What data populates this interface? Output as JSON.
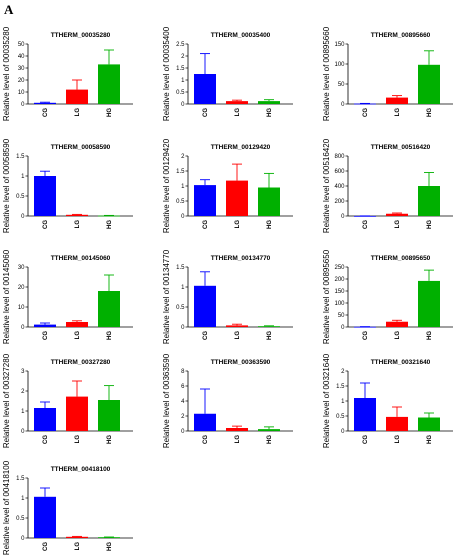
{
  "figure": {
    "panel_letter": "A"
  },
  "colors": {
    "CG": "#0000ff",
    "LG": "#ff0000",
    "HG": "#00b000"
  },
  "chart_data": [
    {
      "type": "bar",
      "title": "TTHERM_00035280",
      "ylabel": "Relative  level of 00035280",
      "categories": [
        "CG",
        "LG",
        "HG"
      ],
      "values": [
        1,
        12,
        33
      ],
      "errors": [
        0.5,
        8,
        12
      ],
      "ylim": [
        0,
        50
      ],
      "yticks": [
        0,
        10,
        20,
        30,
        40,
        50
      ]
    },
    {
      "type": "bar",
      "title": "TTHERM_00035400",
      "ylabel": "Relative  level of 00035400",
      "categories": [
        "CG",
        "LG",
        "HG"
      ],
      "values": [
        1.25,
        0.12,
        0.12
      ],
      "errors": [
        0.85,
        0.04,
        0.06
      ],
      "ylim": [
        0,
        2.5
      ],
      "yticks": [
        0,
        0.5,
        1.0,
        1.5,
        2.0,
        2.5
      ]
    },
    {
      "type": "bar",
      "title": "TTHERM_00895660",
      "ylabel": "Relative  level of 00895660",
      "categories": [
        "CG",
        "LG",
        "HG"
      ],
      "values": [
        1,
        16,
        98
      ],
      "errors": [
        0.5,
        5,
        35
      ],
      "ylim": [
        0,
        150
      ],
      "yticks": [
        0,
        50,
        100,
        150
      ]
    },
    {
      "type": "bar",
      "title": "TTHERM_00058590",
      "ylabel": "Relative  level of 00058590",
      "categories": [
        "CG",
        "LG",
        "HG"
      ],
      "values": [
        1.0,
        0.03,
        0.01
      ],
      "errors": [
        0.12,
        0.01,
        0.005
      ],
      "ylim": [
        0,
        1.5
      ],
      "yticks": [
        0,
        0.5,
        1.0,
        1.5
      ]
    },
    {
      "type": "bar",
      "title": "TTHERM_00129420",
      "ylabel": "Relative  level of 00129420",
      "categories": [
        "CG",
        "LG",
        "HG"
      ],
      "values": [
        1.03,
        1.18,
        0.95
      ],
      "errors": [
        0.18,
        0.55,
        0.47
      ],
      "ylim": [
        0,
        2.0
      ],
      "yticks": [
        0,
        0.5,
        1.0,
        1.5,
        2.0
      ]
    },
    {
      "type": "bar",
      "title": "TTHERM_00516420",
      "ylabel": "Relative  level of 00516420",
      "categories": [
        "CG",
        "LG",
        "HG"
      ],
      "values": [
        1,
        30,
        400
      ],
      "errors": [
        0.5,
        10,
        180
      ],
      "ylim": [
        0,
        800
      ],
      "yticks": [
        0,
        200,
        400,
        600,
        800
      ]
    },
    {
      "type": "bar",
      "title": "TTHERM_00145060",
      "ylabel": "Relative  level of 00145060",
      "categories": [
        "CG",
        "LG",
        "HG"
      ],
      "values": [
        1.2,
        2.5,
        18
      ],
      "errors": [
        0.8,
        0.6,
        8
      ],
      "ylim": [
        0,
        30
      ],
      "yticks": [
        0,
        10,
        20,
        30
      ]
    },
    {
      "type": "bar",
      "title": "TTHERM_00134770",
      "ylabel": "Relative  level of 00134770",
      "categories": [
        "CG",
        "LG",
        "HG"
      ],
      "values": [
        1.03,
        0.04,
        0.02
      ],
      "errors": [
        0.35,
        0.03,
        0.01
      ],
      "ylim": [
        0,
        1.5
      ],
      "yticks": [
        0,
        0.5,
        1.0,
        1.5
      ]
    },
    {
      "type": "bar",
      "title": "TTHERM_00895650",
      "ylabel": "Relative  level of 00895650",
      "categories": [
        "CG",
        "LG",
        "HG"
      ],
      "values": [
        1,
        22,
        192
      ],
      "errors": [
        0.5,
        6,
        45
      ],
      "ylim": [
        0,
        250
      ],
      "yticks": [
        0,
        50,
        100,
        150,
        200,
        250
      ]
    },
    {
      "type": "bar",
      "title": "TTHERM_00327280",
      "ylabel": "Relative  level of 00327280",
      "categories": [
        "CG",
        "LG",
        "HG"
      ],
      "values": [
        1.15,
        1.72,
        1.55
      ],
      "errors": [
        0.3,
        0.78,
        0.72
      ],
      "ylim": [
        0,
        3
      ],
      "yticks": [
        0,
        1,
        2,
        3
      ]
    },
    {
      "type": "bar",
      "title": "TTHERM_00363590",
      "ylabel": "Relative  level of 00363590",
      "categories": [
        "CG",
        "LG",
        "HG"
      ],
      "values": [
        2.3,
        0.4,
        0.25
      ],
      "errors": [
        3.3,
        0.25,
        0.3
      ],
      "ylim": [
        0,
        8
      ],
      "yticks": [
        0,
        2,
        4,
        6,
        8
      ]
    },
    {
      "type": "bar",
      "title": "TTHERM_00321640",
      "ylabel": "Relative  level of 00321640",
      "categories": [
        "CG",
        "LG",
        "HG"
      ],
      "values": [
        1.1,
        0.47,
        0.45
      ],
      "errors": [
        0.5,
        0.33,
        0.15
      ],
      "ylim": [
        0,
        2.0
      ],
      "yticks": [
        0,
        0.5,
        1.0,
        1.5,
        2.0
      ]
    },
    {
      "type": "bar",
      "title": "TTHERM_00418100",
      "ylabel": "Relative  level of 00418100",
      "categories": [
        "CG",
        "LG",
        "HG"
      ],
      "values": [
        1.03,
        0.03,
        0.02
      ],
      "errors": [
        0.22,
        0.01,
        0.005
      ],
      "ylim": [
        0,
        1.5
      ],
      "yticks": [
        0,
        0.5,
        1.0,
        1.5
      ]
    }
  ]
}
